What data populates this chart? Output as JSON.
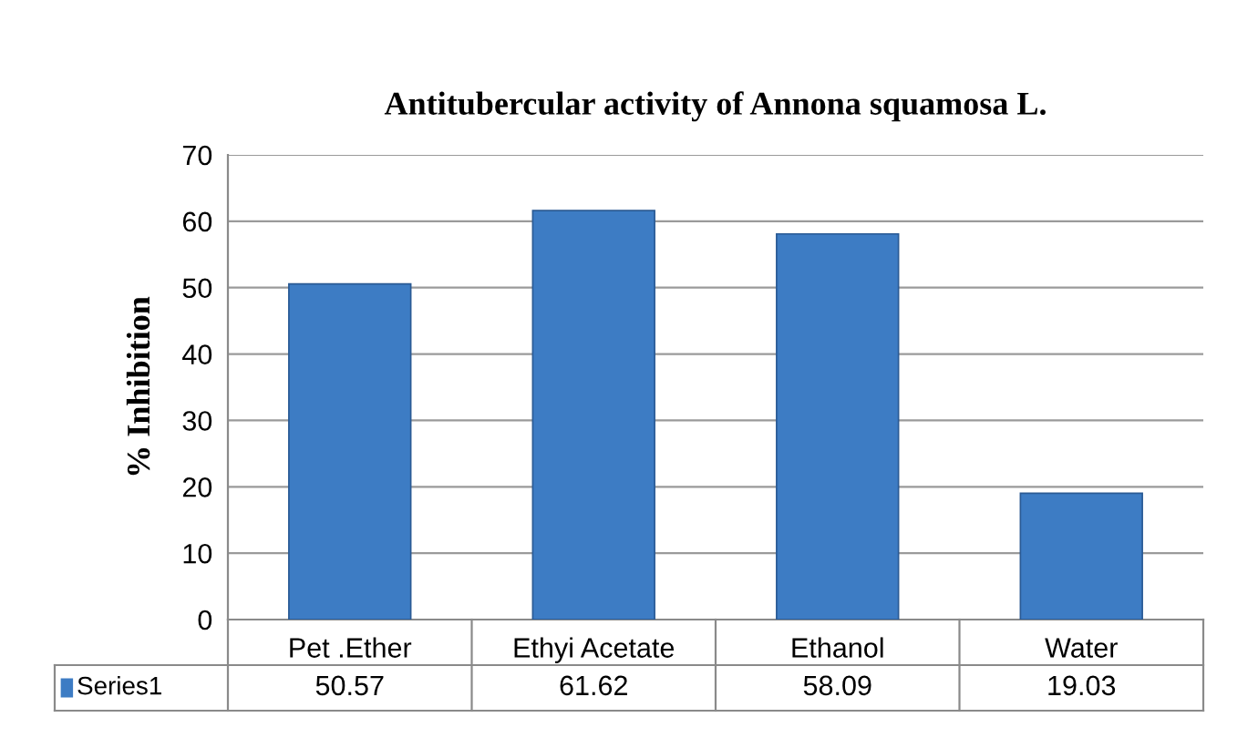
{
  "chart_data": {
    "type": "bar",
    "title": "Antitubercular activity of Annona squamosa L.",
    "ylabel": "% Inhibition",
    "categories": [
      "Pet .Ether",
      "Ethyi Acetate",
      "Ethanol",
      "Water"
    ],
    "series": [
      {
        "name": "Series1",
        "color": "#3d7cc4",
        "values": [
          50.57,
          61.62,
          58.09,
          19.03
        ]
      }
    ],
    "ylim": [
      0,
      70
    ],
    "yticks": [
      0,
      10,
      20,
      30,
      40,
      50,
      60,
      70
    ],
    "grid": "y",
    "data_labels": true,
    "legend": "bottom"
  }
}
